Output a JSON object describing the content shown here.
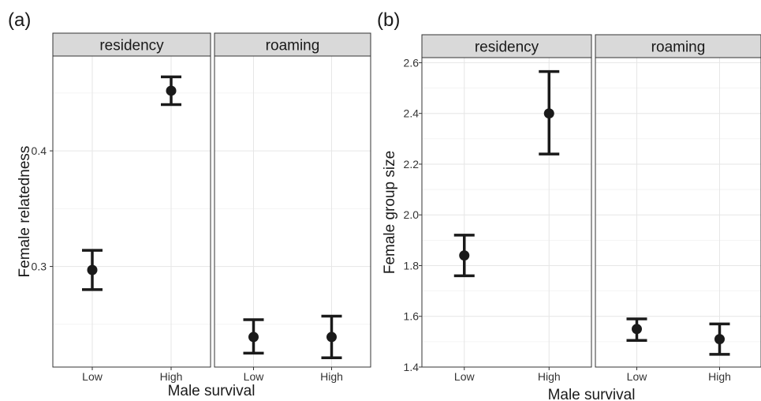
{
  "chart_data": [
    {
      "tag": "(a)",
      "type": "errorbar",
      "xlabel": "Male survival",
      "ylabel": "Female relatedness",
      "ylim": [
        0.213,
        0.482
      ],
      "yticks": [
        0.3,
        0.4
      ],
      "ytick_labels": [
        "0.3",
        "0.4"
      ],
      "minor_gridlines": [
        0.25,
        0.35,
        0.45
      ],
      "categories": [
        "Low",
        "High"
      ],
      "facets": [
        {
          "name": "residency",
          "points": [
            {
              "x": "Low",
              "y": 0.297,
              "ymin": 0.28,
              "ymax": 0.314
            },
            {
              "x": "High",
              "y": 0.452,
              "ymin": 0.44,
              "ymax": 0.464
            }
          ]
        },
        {
          "name": "roaming",
          "points": [
            {
              "x": "Low",
              "y": 0.239,
              "ymin": 0.225,
              "ymax": 0.254
            },
            {
              "x": "High",
              "y": 0.239,
              "ymin": 0.221,
              "ymax": 0.257
            }
          ]
        }
      ]
    },
    {
      "tag": "(b)",
      "type": "errorbar",
      "xlabel": "Male survival",
      "ylabel": "Female group size",
      "ylim": [
        1.4,
        2.62
      ],
      "yticks": [
        1.4,
        1.6,
        1.8,
        2.0,
        2.2,
        2.4,
        2.6
      ],
      "ytick_labels": [
        "1.4",
        "1.6",
        "1.8",
        "2.0",
        "2.2",
        "2.4",
        "2.6"
      ],
      "minor_gridlines": [
        1.5,
        1.7,
        1.9,
        2.1,
        2.3,
        2.5
      ],
      "categories": [
        "Low",
        "High"
      ],
      "facets": [
        {
          "name": "residency",
          "points": [
            {
              "x": "Low",
              "y": 1.84,
              "ymin": 1.76,
              "ymax": 1.92
            },
            {
              "x": "High",
              "y": 2.4,
              "ymin": 2.24,
              "ymax": 2.565
            }
          ]
        },
        {
          "name": "roaming",
          "points": [
            {
              "x": "Low",
              "y": 1.55,
              "ymin": 1.505,
              "ymax": 1.59
            },
            {
              "x": "High",
              "y": 1.51,
              "ymin": 1.45,
              "ymax": 1.57
            }
          ]
        }
      ]
    }
  ],
  "colors": {
    "strip_fill": "#d9d9d9",
    "strip_border": "#333333",
    "panel_border": "#333333",
    "major_grid": "#e6e6e6",
    "minor_grid": "#f2f2f2",
    "marks": "#1a1a1a",
    "text": "#1a1a1a",
    "tick_text": "#333333"
  }
}
